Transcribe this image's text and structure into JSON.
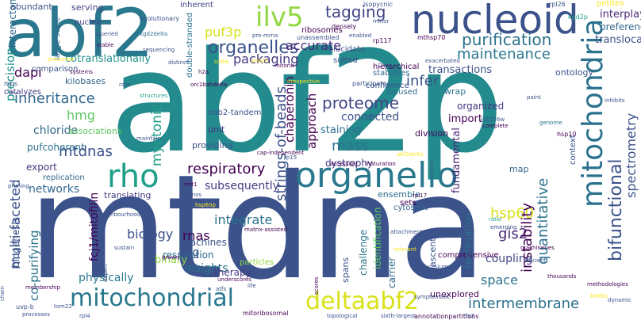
{
  "wordcloud": {
    "words": [
      "abf2p",
      "mtdna",
      "abf2",
      "nucleoid",
      "mitochondria",
      "organello",
      "mitochondrial",
      "deltaabf2",
      "ilv5",
      "rho",
      "tagging",
      "organelles",
      "purification",
      "maintenance",
      "puf3p",
      "accurate",
      "packaging",
      "infer",
      "dapi",
      "inheritance",
      "proteome",
      "connected",
      "hmg",
      "mass",
      "mtdnas",
      "respiratory",
      "biology",
      "chloride",
      "networks",
      "subsequently",
      "intermembrane",
      "hsp60",
      "gis2",
      "integrate",
      "rnas",
      "log",
      "space",
      "binary",
      "insights",
      "coupling",
      "therapy",
      "machines",
      "respiration",
      "instability",
      "bifunctional",
      "spectrometry",
      "quantitative",
      "strings-of-beads",
      "multi-faceted",
      "co-purifying",
      "myotonic",
      "chaperonin",
      "approach",
      "staining",
      "dystrophy",
      "physically",
      "biogenesis",
      "fcj1/mitofilin",
      "abundant",
      "interactome",
      "precision",
      "large-scale",
      "cotranslationally",
      "nucleic",
      "serving",
      "inherent",
      "ribosomes",
      "elucidate",
      "transactions",
      "suited",
      "hierarchical",
      "stabilizes",
      "confidence",
      "focused",
      "wrap",
      "organized",
      "import",
      "fundamental",
      "division",
      "ensemble",
      "cytosolic",
      "outer",
      "map",
      "interplay",
      "preference",
      "translocase",
      "petites",
      "pufcoherent",
      "associations",
      "export",
      "translating",
      "replication",
      "challenge",
      "identification",
      "carrier",
      "spans",
      "sets",
      "comprehensive",
      "unexplored",
      "segregation",
      "nascent",
      "context",
      "kilobases",
      "catalyzes",
      "comparison",
      "providing",
      "unit",
      "nab2-tandem",
      "ontology",
      "double-stranded",
      "evolutionary",
      "isopycnic",
      "densely",
      "unassembled",
      "rp117",
      "mthsp70",
      "27sa",
      "exacerbated",
      "kgd2p",
      "rpl26",
      "queried",
      "stable",
      "kgd2delta",
      "pre-mrna",
      "mitorib",
      "article",
      "enabled",
      "precursor",
      "systems",
      "urea",
      "irrespective",
      "distinct",
      "orc1bahdelta",
      "h2a",
      "mps",
      "rate",
      "structures",
      "participate",
      "paint",
      "genome",
      "yd1156w",
      "complete",
      "hsp10",
      "maintain",
      "cap-independent",
      "accessory",
      "maturation",
      "hsp60p",
      "minos",
      "rp15",
      "mtt1",
      "abf2delta",
      "rpl17",
      "emerging",
      "ratio",
      "priming",
      "matrix-assisted",
      "attachment",
      "machineries",
      "neighbourhood",
      "sustain",
      "efficient",
      "relevant",
      "cesium",
      "thousands",
      "scores",
      "life",
      "symptomatic",
      "expert",
      "membership",
      "chain",
      "tom22",
      "atfs",
      "grown",
      "particles",
      "underscores",
      "methodologies",
      "dynamic",
      "krebs",
      "uvp-b",
      "processes",
      "rpl4",
      "topological",
      "sixth-largest",
      "annotationpartitions",
      "mitoribosomal",
      "rfa2",
      "inhibits",
      "minor",
      "sequencing"
    ]
  }
}
